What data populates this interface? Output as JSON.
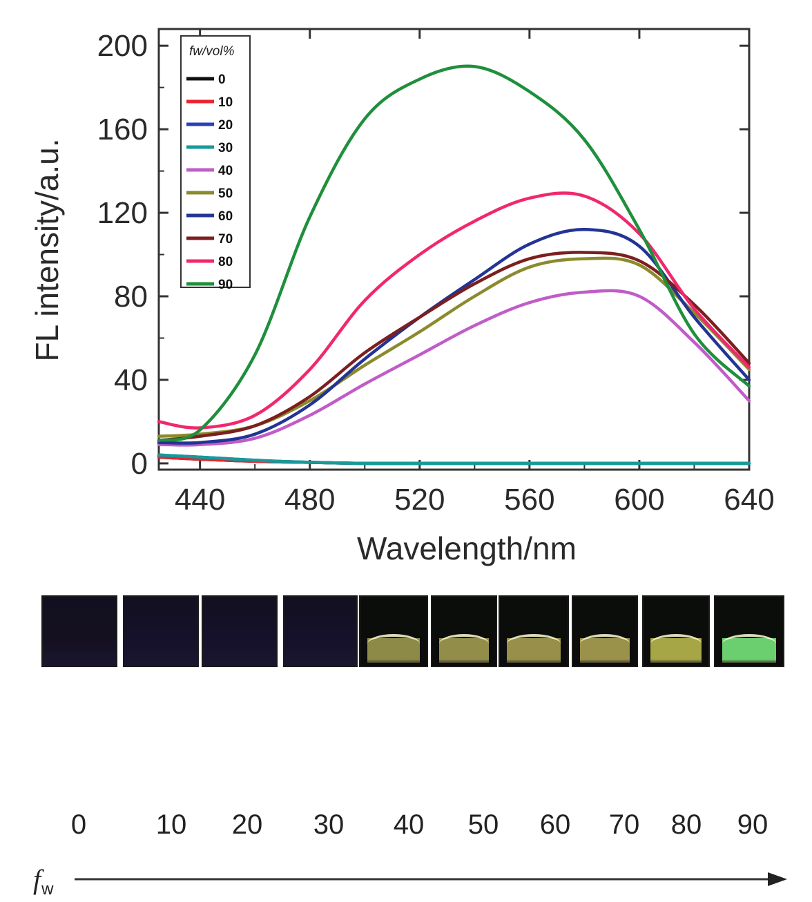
{
  "chart_data": {
    "type": "line",
    "xlabel": "Wavelength/nm",
    "ylabel": "FL intensity/a.u.",
    "xlim": [
      425,
      640
    ],
    "ylim": [
      -3,
      208
    ],
    "xticks": [
      440,
      480,
      520,
      560,
      600,
      640
    ],
    "yticks": [
      0,
      40,
      80,
      120,
      160,
      200
    ],
    "legend_title": "fw/vol%",
    "legend_position": "top-left",
    "series": [
      {
        "name": "0",
        "color": "#111111",
        "x": [
          425,
          440,
          460,
          480,
          500,
          520,
          540,
          560,
          580,
          600,
          620,
          640
        ],
        "y": [
          3,
          2,
          1,
          0.5,
          0,
          0,
          0,
          0,
          0,
          0,
          0,
          0
        ]
      },
      {
        "name": "10",
        "color": "#e8262f",
        "x": [
          425,
          440,
          460,
          480,
          500,
          520,
          540,
          560,
          580,
          600,
          620,
          640
        ],
        "y": [
          3,
          2,
          1,
          0.5,
          0,
          0,
          0,
          0,
          0,
          0,
          0,
          0
        ]
      },
      {
        "name": "20",
        "color": "#2b3fb8",
        "x": [
          425,
          440,
          460,
          480,
          500,
          520,
          540,
          560,
          580,
          600,
          620,
          640
        ],
        "y": [
          4,
          3,
          1.5,
          0.5,
          0,
          0,
          0,
          0,
          0,
          0,
          0,
          0
        ]
      },
      {
        "name": "30",
        "color": "#169a98",
        "x": [
          425,
          440,
          460,
          480,
          500,
          520,
          540,
          560,
          580,
          600,
          620,
          640
        ],
        "y": [
          4,
          3,
          1.5,
          0.5,
          0,
          0,
          0,
          0,
          0,
          0,
          0,
          0
        ]
      },
      {
        "name": "40",
        "color": "#c05cc7",
        "x": [
          425,
          440,
          460,
          480,
          500,
          520,
          540,
          560,
          580,
          600,
          620,
          640
        ],
        "y": [
          9,
          9,
          12,
          23,
          38,
          52,
          66,
          77,
          82,
          80,
          58,
          30
        ]
      },
      {
        "name": "50",
        "color": "#8b8a2c",
        "x": [
          425,
          440,
          460,
          480,
          500,
          520,
          540,
          560,
          580,
          600,
          620,
          640
        ],
        "y": [
          13,
          14,
          18,
          30,
          47,
          63,
          80,
          94,
          98,
          95,
          72,
          45
        ]
      },
      {
        "name": "60",
        "color": "#233494",
        "x": [
          425,
          440,
          460,
          480,
          500,
          520,
          540,
          560,
          580,
          600,
          620,
          640
        ],
        "y": [
          10,
          10,
          14,
          28,
          50,
          70,
          88,
          105,
          112,
          104,
          70,
          40
        ]
      },
      {
        "name": "70",
        "color": "#7b1f1f",
        "x": [
          425,
          440,
          460,
          480,
          500,
          520,
          540,
          560,
          580,
          600,
          620,
          640
        ],
        "y": [
          11,
          13,
          18,
          32,
          53,
          70,
          86,
          98,
          101,
          97,
          76,
          48
        ]
      },
      {
        "name": "80",
        "color": "#f0286e",
        "x": [
          425,
          440,
          460,
          480,
          500,
          520,
          540,
          560,
          580,
          600,
          620,
          640
        ],
        "y": [
          20,
          17,
          23,
          45,
          78,
          100,
          116,
          127,
          128,
          110,
          74,
          46
        ]
      },
      {
        "name": "90",
        "color": "#1f8f3c",
        "x": [
          425,
          440,
          460,
          480,
          500,
          520,
          540,
          560,
          580,
          600,
          620,
          640
        ],
        "y": [
          11,
          16,
          52,
          118,
          165,
          184,
          190,
          178,
          155,
          112,
          62,
          37
        ]
      }
    ]
  },
  "vials": {
    "labels": [
      "0",
      "10",
      "20",
      "30",
      "40",
      "50",
      "60",
      "70",
      "80",
      "90"
    ],
    "colors": [
      "#14101f",
      "#15112a",
      "#15112a",
      "#15112a",
      "#8d8a48",
      "#938d4a",
      "#978f4a",
      "#9a914a",
      "#a7a646",
      "#6ccf6f"
    ],
    "axis_symbol": "f",
    "axis_subscript": "w"
  }
}
